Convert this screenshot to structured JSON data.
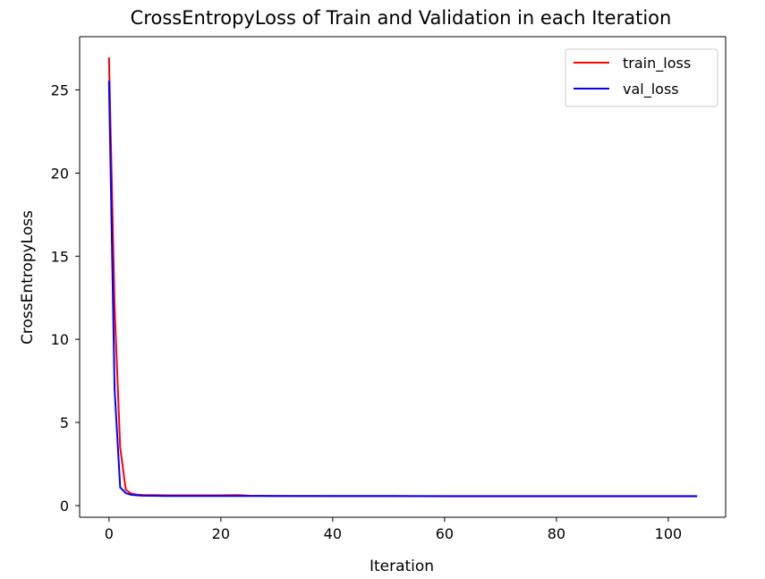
{
  "chart_data": {
    "type": "line",
    "title": "CrossEntropyLoss of Train and Validation in each Iteration",
    "xlabel": "Iteration",
    "ylabel": "CrossEntropyLoss",
    "xlim": [
      -5.25,
      110.25
    ],
    "ylim": [
      -0.7,
      28.2
    ],
    "xticks": [
      0,
      20,
      40,
      60,
      80,
      100
    ],
    "yticks": [
      0,
      5,
      10,
      15,
      20,
      25
    ],
    "grid": false,
    "legend_position": "upper right",
    "series": [
      {
        "name": "train_loss",
        "color": "#ff0000",
        "x": [
          0,
          1,
          2,
          3,
          4,
          5,
          6,
          8,
          10,
          15,
          20,
          23,
          25,
          30,
          40,
          50,
          60,
          70,
          80,
          90,
          100,
          105
        ],
        "y": [
          26.9,
          12.0,
          3.5,
          0.95,
          0.72,
          0.66,
          0.64,
          0.63,
          0.62,
          0.62,
          0.62,
          0.63,
          0.6,
          0.58,
          0.57,
          0.57,
          0.56,
          0.56,
          0.56,
          0.56,
          0.56,
          0.56
        ]
      },
      {
        "name": "val_loss",
        "color": "#0000ff",
        "x": [
          0,
          1,
          2,
          3,
          4,
          5,
          6,
          8,
          10,
          15,
          20,
          25,
          30,
          40,
          50,
          60,
          70,
          80,
          90,
          100,
          105
        ],
        "y": [
          25.5,
          7.0,
          1.1,
          0.75,
          0.65,
          0.62,
          0.6,
          0.59,
          0.58,
          0.58,
          0.58,
          0.58,
          0.58,
          0.58,
          0.58,
          0.57,
          0.57,
          0.57,
          0.57,
          0.57,
          0.57
        ]
      }
    ]
  }
}
